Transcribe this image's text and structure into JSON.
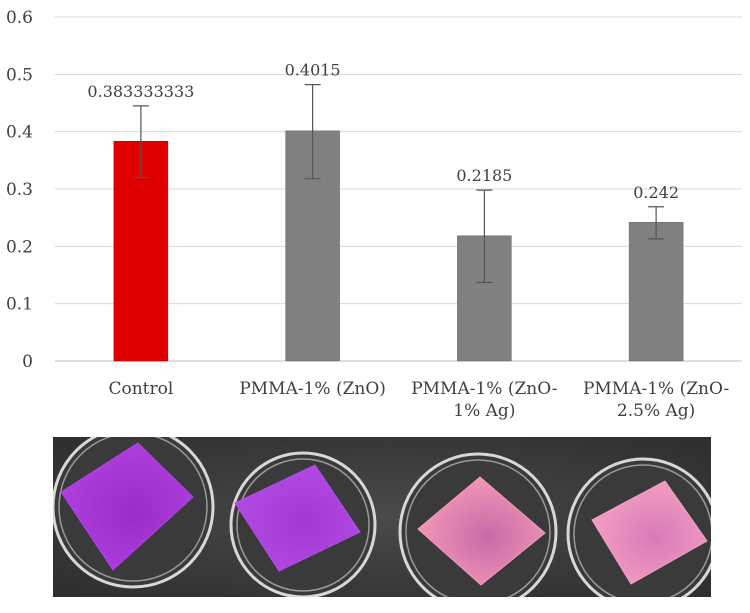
{
  "chart_data": {
    "type": "bar",
    "categories": [
      [
        "Control"
      ],
      [
        "PMMA-1% (ZnO)"
      ],
      [
        "PMMA-1% (ZnO-",
        "1% Ag)"
      ],
      [
        "PMMA-1% (ZnO-",
        "2.5% Ag)"
      ]
    ],
    "values": [
      0.383333333,
      0.4015,
      0.2185,
      0.242
    ],
    "data_labels": [
      "0.383333333",
      "0.4015",
      "0.2185",
      "0.242"
    ],
    "error_bars": [
      {
        "low": 0.32,
        "high": 0.445
      },
      {
        "low": 0.318,
        "high": 0.482
      },
      {
        "low": 0.137,
        "high": 0.298
      },
      {
        "low": 0.213,
        "high": 0.269
      }
    ],
    "bar_colors": [
      "#e00000",
      "#808080",
      "#808080",
      "#808080"
    ],
    "ylim": [
      0,
      0.6
    ],
    "yticks": [
      "0",
      "0.1",
      "0.2",
      "0.3",
      "0.4",
      "0.5",
      "0.6"
    ],
    "grid": true,
    "title": "",
    "xlabel": "",
    "ylabel": ""
  },
  "photo": {
    "background": "#2e2e2e",
    "samples": [
      {
        "color": "#b040e0",
        "shade": "#9a2cc8"
      },
      {
        "color": "#b44ae6",
        "shade": "#a03ad0"
      },
      {
        "color": "#f59ab8",
        "shade": "#c86aa8"
      },
      {
        "color": "#f4a0c4",
        "shade": "#d87ab8"
      }
    ]
  }
}
